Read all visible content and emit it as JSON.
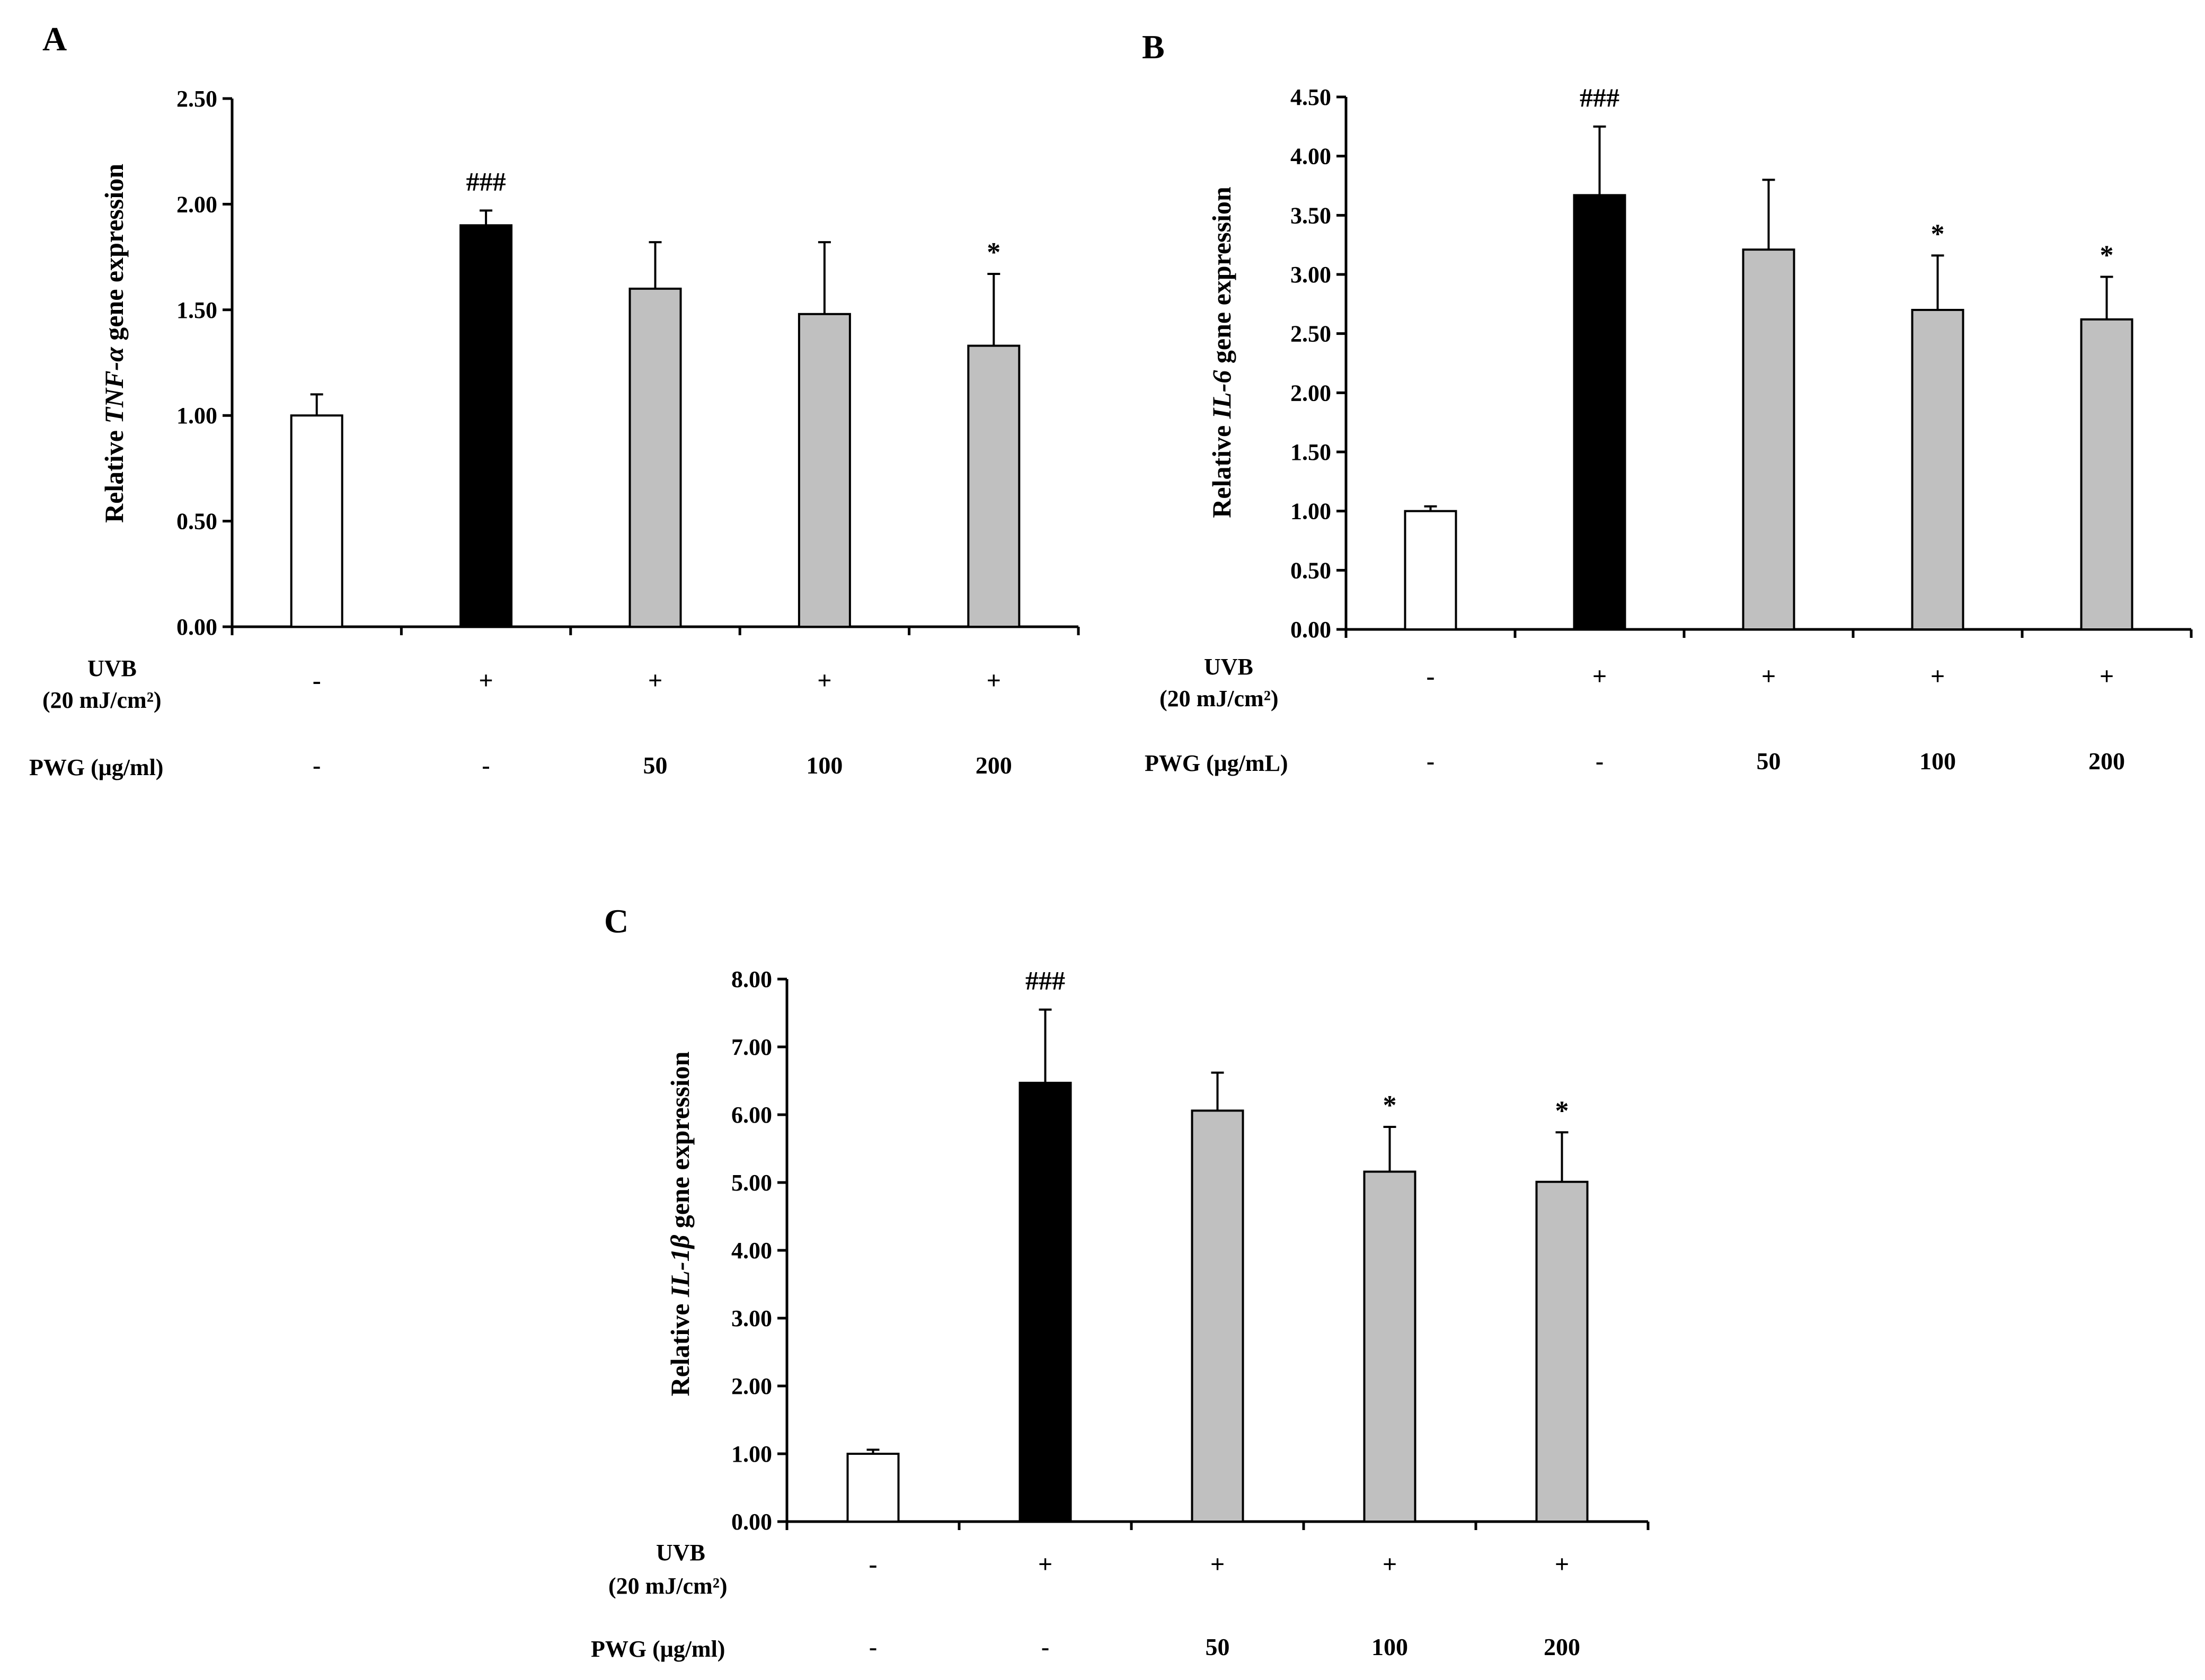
{
  "chart_data": [
    {
      "panel": "A",
      "type": "bar",
      "categories": [
        "UVB -, PWG -",
        "UVB +, PWG -",
        "UVB +, PWG 50",
        "UVB +, PWG 100",
        "UVB +, PWG 200"
      ],
      "values": [
        1.0,
        1.9,
        1.6,
        1.48,
        1.33
      ],
      "errors": [
        0.1,
        0.07,
        0.22,
        0.34,
        0.34
      ],
      "annotations": [
        "",
        "###",
        "",
        "",
        "*"
      ],
      "bar_colors": [
        "#ffffff",
        "#000000",
        "#c0c0c0",
        "#c0c0c0",
        "#c0c0c0"
      ],
      "ylim": [
        0,
        2.5
      ],
      "yticks": [
        "0.00",
        "0.50",
        "1.00",
        "1.50",
        "2.00",
        "2.50"
      ],
      "ylabel_pre": "Relative ",
      "ylabel_gene": "TNF-α",
      "ylabel_post": " gene expression",
      "uvb_row": [
        "-",
        "+",
        "+",
        "+",
        "+"
      ],
      "pwg_row": [
        "-",
        "-",
        "50",
        "100",
        "200"
      ]
    },
    {
      "panel": "B",
      "type": "bar",
      "categories": [
        "UVB -, PWG -",
        "UVB +, PWG -",
        "UVB +, PWG 50",
        "UVB +, PWG 100",
        "UVB +, PWG 200"
      ],
      "values": [
        1.0,
        3.67,
        3.21,
        2.7,
        2.62
      ],
      "errors": [
        0.04,
        0.58,
        0.59,
        0.46,
        0.36
      ],
      "annotations": [
        "",
        "###",
        "",
        "*",
        "*"
      ],
      "bar_colors": [
        "#ffffff",
        "#000000",
        "#c0c0c0",
        "#c0c0c0",
        "#c0c0c0"
      ],
      "ylim": [
        0,
        4.5
      ],
      "yticks": [
        "0.00",
        "0.50",
        "1.00",
        "1.50",
        "2.00",
        "2.50",
        "3.00",
        "3.50",
        "4.00",
        "4.50"
      ],
      "ylabel_pre": "Relative ",
      "ylabel_gene": "IL-6",
      "ylabel_post": "  gene expression",
      "uvb_row": [
        "-",
        "+",
        "+",
        "+",
        "+"
      ],
      "pwg_row": [
        "-",
        "-",
        "50",
        "100",
        "200"
      ]
    },
    {
      "panel": "C",
      "type": "bar",
      "categories": [
        "UVB -, PWG -",
        "UVB +, PWG -",
        "UVB +, PWG 50",
        "UVB +, PWG 100",
        "UVB +, PWG 200"
      ],
      "values": [
        1.0,
        6.47,
        6.06,
        5.16,
        5.01
      ],
      "errors": [
        0.06,
        1.08,
        0.56,
        0.66,
        0.73
      ],
      "annotations": [
        "",
        "###",
        "",
        "*",
        "*"
      ],
      "bar_colors": [
        "#ffffff",
        "#000000",
        "#c0c0c0",
        "#c0c0c0",
        "#c0c0c0"
      ],
      "ylim": [
        0,
        8
      ],
      "yticks": [
        "0.00",
        "1.00",
        "2.00",
        "3.00",
        "4.00",
        "5.00",
        "6.00",
        "7.00",
        "8.00"
      ],
      "ylabel_pre": "Relative ",
      "ylabel_gene": "IL-1β",
      "ylabel_post": "  gene expression",
      "uvb_row": [
        "-",
        "+",
        "+",
        "+",
        "+"
      ],
      "pwg_row": [
        "-",
        "-",
        "50",
        "100",
        "200"
      ]
    }
  ],
  "row_labels": {
    "uvb_line1": "UVB",
    "uvb_line2": "(20 mJ/cm²)",
    "pwg": "PWG (μg/ml)",
    "pwg_b": "PWG (μg/mL)"
  },
  "colors": {
    "axis": "#000000",
    "control": "#ffffff",
    "uvb_only": "#000000",
    "treated": "#c0c0c0"
  }
}
